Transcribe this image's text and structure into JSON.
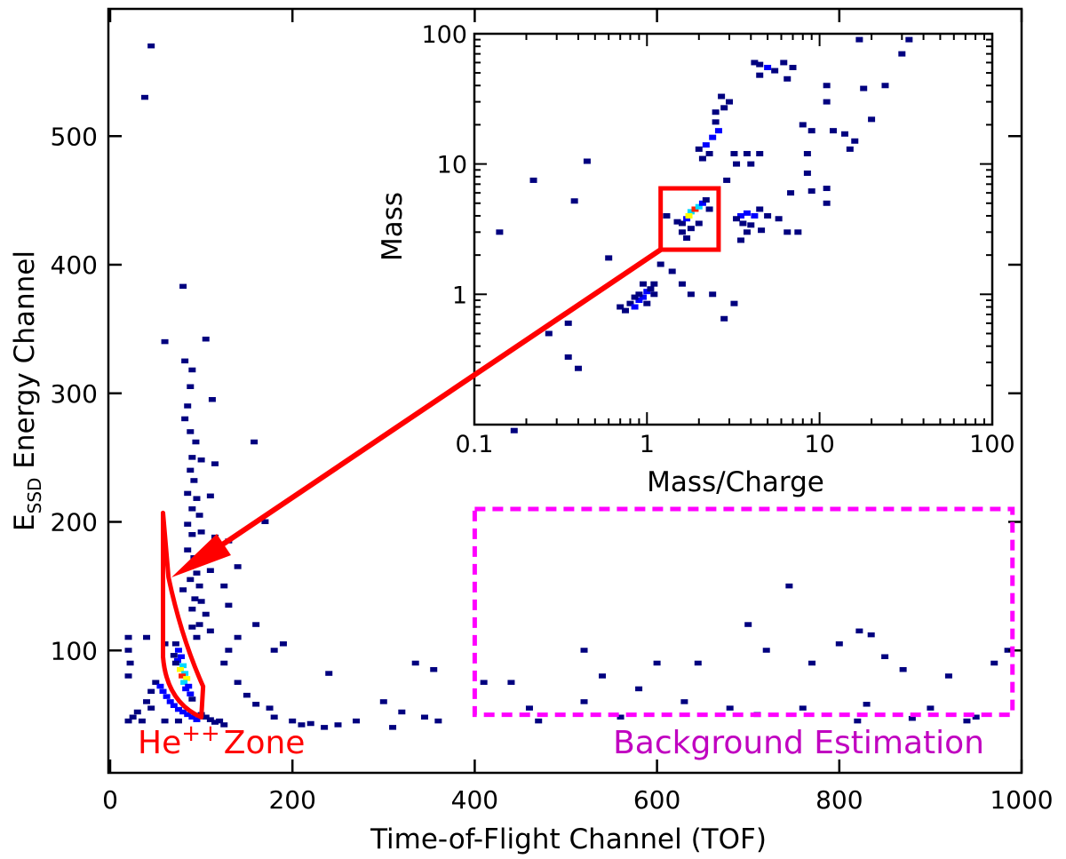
{
  "colors": {
    "zone": "#ff0000",
    "background_box": "#ff00ff",
    "background_text": "#c000c0",
    "levels": [
      "#00007f",
      "#0000ff",
      "#00d8ff",
      "#ffff00",
      "#ff2000",
      "#800000"
    ]
  },
  "chart_data": [
    {
      "type": "heatmap",
      "xlabel": "Time-of-Flight Channel (TOF)",
      "ylabel_main": "E",
      "ylabel_sub": "SSD",
      "ylabel_rest": " Energy Channel",
      "xlim": [
        0,
        1000
      ],
      "ylim": [
        5,
        600
      ],
      "xticks": [
        "0",
        "200",
        "400",
        "600",
        "800",
        "1000"
      ],
      "yticks": [
        "100",
        "200",
        "300",
        "400",
        "500"
      ],
      "grid": false,
      "annotations": {
        "zone_label_main": "He",
        "zone_label_sup": "++",
        "zone_label_rest": "Zone",
        "background_label": "Background Estimation",
        "background_box": {
          "x": [
            400,
            990
          ],
          "y": [
            50,
            210
          ]
        },
        "zone_polygon": [
          [
            58,
            207
          ],
          [
            58,
            95
          ],
          [
            100,
            48
          ],
          [
            102,
            72
          ],
          [
            64,
            157
          ]
        ]
      },
      "bins_note_format": [
        "tof",
        "energy",
        "level"
      ],
      "bins": [
        [
          45,
          570,
          1
        ],
        [
          38,
          530,
          1
        ],
        [
          80,
          383,
          1
        ],
        [
          60,
          340,
          1
        ],
        [
          105,
          342,
          1
        ],
        [
          82,
          325,
          1
        ],
        [
          90,
          318,
          1
        ],
        [
          88,
          305,
          1
        ],
        [
          85,
          290,
          1
        ],
        [
          112,
          295,
          1
        ],
        [
          82,
          280,
          1
        ],
        [
          88,
          270,
          1
        ],
        [
          94,
          262,
          1
        ],
        [
          90,
          250,
          1
        ],
        [
          100,
          248,
          1
        ],
        [
          115,
          245,
          1
        ],
        [
          88,
          240,
          1
        ],
        [
          92,
          232,
          1
        ],
        [
          85,
          222,
          1
        ],
        [
          95,
          218,
          1
        ],
        [
          110,
          220,
          1
        ],
        [
          90,
          210,
          1
        ],
        [
          98,
          205,
          1
        ],
        [
          85,
          198,
          1
        ],
        [
          90,
          190,
          1
        ],
        [
          100,
          192,
          1
        ],
        [
          115,
          188,
          1
        ],
        [
          130,
          185,
          1
        ],
        [
          85,
          178,
          1
        ],
        [
          92,
          172,
          1
        ],
        [
          105,
          175,
          1
        ],
        [
          88,
          165,
          1
        ],
        [
          95,
          160,
          1
        ],
        [
          110,
          162,
          1
        ],
        [
          88,
          155,
          1
        ],
        [
          98,
          150,
          1
        ],
        [
          80,
          147,
          1
        ],
        [
          93,
          140,
          1
        ],
        [
          100,
          138,
          1
        ],
        [
          90,
          132,
          1
        ],
        [
          105,
          128,
          1
        ],
        [
          98,
          120,
          1
        ],
        [
          90,
          118,
          1
        ],
        [
          95,
          110,
          1
        ],
        [
          110,
          115,
          1
        ],
        [
          158,
          262,
          1
        ],
        [
          170,
          200,
          1
        ],
        [
          140,
          165,
          1
        ],
        [
          130,
          135,
          1
        ],
        [
          125,
          150,
          1
        ],
        [
          72,
          105,
          1
        ],
        [
          75,
          100,
          2
        ],
        [
          78,
          95,
          2
        ],
        [
          74,
          92,
          2
        ],
        [
          80,
          88,
          3
        ],
        [
          77,
          85,
          4
        ],
        [
          82,
          82,
          3
        ],
        [
          79,
          80,
          5
        ],
        [
          84,
          78,
          4
        ],
        [
          81,
          75,
          3
        ],
        [
          86,
          72,
          2
        ],
        [
          83,
          70,
          2
        ],
        [
          88,
          66,
          2
        ],
        [
          90,
          62,
          1
        ],
        [
          72,
          90,
          1
        ],
        [
          70,
          96,
          1
        ],
        [
          50,
          75,
          1
        ],
        [
          55,
          72,
          2
        ],
        [
          58,
          68,
          2
        ],
        [
          62,
          64,
          2
        ],
        [
          66,
          60,
          2
        ],
        [
          70,
          57,
          2
        ],
        [
          75,
          54,
          2
        ],
        [
          80,
          52,
          2
        ],
        [
          85,
          50,
          2
        ],
        [
          90,
          48,
          2
        ],
        [
          95,
          46,
          2
        ],
        [
          100,
          50,
          1
        ],
        [
          105,
          48,
          1
        ],
        [
          110,
          46,
          1
        ],
        [
          115,
          44,
          1
        ],
        [
          120,
          45,
          1
        ],
        [
          125,
          42,
          1
        ],
        [
          45,
          68,
          1
        ],
        [
          40,
          60,
          1
        ],
        [
          30,
          52,
          1
        ],
        [
          25,
          48,
          1
        ],
        [
          20,
          45,
          1
        ],
        [
          35,
          45,
          1
        ],
        [
          60,
          45,
          1
        ],
        [
          75,
          45,
          1
        ],
        [
          45,
          55,
          1
        ],
        [
          20,
          110,
          1
        ],
        [
          20,
          100,
          1
        ],
        [
          22,
          90,
          1
        ],
        [
          20,
          80,
          1
        ],
        [
          40,
          110,
          1
        ],
        [
          60,
          105,
          1
        ],
        [
          140,
          75,
          1
        ],
        [
          150,
          65,
          1
        ],
        [
          160,
          58,
          1
        ],
        [
          175,
          55,
          1
        ],
        [
          180,
          48,
          1
        ],
        [
          200,
          45,
          1
        ],
        [
          210,
          42,
          1
        ],
        [
          220,
          43,
          1
        ],
        [
          235,
          40,
          1
        ],
        [
          250,
          42,
          1
        ],
        [
          270,
          45,
          1
        ],
        [
          240,
          82,
          1
        ],
        [
          300,
          60,
          1
        ],
        [
          310,
          40,
          1
        ],
        [
          320,
          52,
          1
        ],
        [
          345,
          48,
          1
        ],
        [
          360,
          45,
          1
        ],
        [
          335,
          90,
          1
        ],
        [
          355,
          85,
          1
        ],
        [
          190,
          105,
          1
        ],
        [
          160,
          120,
          1
        ],
        [
          180,
          100,
          1
        ],
        [
          130,
          100,
          1
        ],
        [
          140,
          110,
          1
        ],
        [
          125,
          90,
          1
        ],
        [
          440,
          75,
          1
        ],
        [
          460,
          55,
          1
        ],
        [
          520,
          100,
          1
        ],
        [
          540,
          80,
          1
        ],
        [
          580,
          70,
          1
        ],
        [
          600,
          90,
          1
        ],
        [
          645,
          90,
          1
        ],
        [
          700,
          120,
          1
        ],
        [
          720,
          100,
          1
        ],
        [
          745,
          150,
          1
        ],
        [
          770,
          90,
          1
        ],
        [
          800,
          105,
          1
        ],
        [
          822,
          115,
          1
        ],
        [
          835,
          112,
          1
        ],
        [
          850,
          95,
          1
        ],
        [
          870,
          85,
          1
        ],
        [
          920,
          80,
          1
        ],
        [
          970,
          90,
          1
        ],
        [
          985,
          100,
          1
        ],
        [
          410,
          75,
          1
        ],
        [
          520,
          60,
          1
        ],
        [
          630,
          60,
          1
        ],
        [
          680,
          55,
          1
        ],
        [
          760,
          55,
          1
        ],
        [
          830,
          58,
          1
        ],
        [
          900,
          55,
          1
        ],
        [
          950,
          48,
          1
        ],
        [
          470,
          45,
          1
        ],
        [
          560,
          48,
          1
        ],
        [
          710,
          50,
          1
        ],
        [
          820,
          45,
          1
        ],
        [
          880,
          47,
          1
        ],
        [
          940,
          45,
          1
        ]
      ]
    },
    {
      "type": "heatmap",
      "xlabel": "Mass/Charge",
      "ylabel": "Mass",
      "xscale": "log",
      "yscale": "log",
      "xlim": [
        0.1,
        100
      ],
      "ylim": [
        0.1,
        100
      ],
      "xticks": [
        "0.1",
        "1",
        "10",
        "100"
      ],
      "yticks": [
        "1",
        "10",
        "100"
      ],
      "grid": false,
      "annotations": {
        "highlight_box": {
          "x": [
            1.2,
            2.6
          ],
          "y": [
            2.2,
            6.5
          ]
        }
      },
      "bins": [
        [
          0.8,
          0.85,
          1
        ],
        [
          0.85,
          0.8,
          2
        ],
        [
          0.9,
          0.9,
          2
        ],
        [
          0.95,
          0.95,
          2
        ],
        [
          1.0,
          1.05,
          2
        ],
        [
          1.05,
          1.1,
          1
        ],
        [
          0.9,
          1.0,
          1
        ],
        [
          0.85,
          0.95,
          1
        ],
        [
          1.1,
          1.0,
          1
        ],
        [
          0.75,
          0.75,
          1
        ],
        [
          1.0,
          0.85,
          1
        ],
        [
          1.1,
          1.2,
          1
        ],
        [
          0.7,
          0.8,
          1
        ],
        [
          0.95,
          1.2,
          1
        ],
        [
          1.6,
          3.5,
          1
        ],
        [
          1.7,
          3.8,
          2
        ],
        [
          1.8,
          4.3,
          3
        ],
        [
          1.75,
          4.0,
          4
        ],
        [
          1.9,
          4.5,
          5
        ],
        [
          2.0,
          4.7,
          3
        ],
        [
          2.1,
          5.0,
          2
        ],
        [
          2.2,
          5.3,
          1
        ],
        [
          1.6,
          3.0,
          1
        ],
        [
          1.8,
          3.2,
          1
        ],
        [
          2.0,
          3.5,
          1
        ],
        [
          1.5,
          3.6,
          1
        ],
        [
          2.3,
          4.5,
          1
        ],
        [
          1.7,
          2.7,
          1
        ],
        [
          1.3,
          4.0,
          1
        ],
        [
          3.5,
          4.0,
          2
        ],
        [
          3.8,
          4.2,
          2
        ],
        [
          4.2,
          4.0,
          2
        ],
        [
          3.6,
          3.5,
          1
        ],
        [
          4.5,
          4.5,
          1
        ],
        [
          3.3,
          3.8,
          1
        ],
        [
          4.0,
          3.4,
          1
        ],
        [
          5.0,
          4.0,
          1
        ],
        [
          5.8,
          3.8,
          1
        ],
        [
          3.8,
          3.0,
          1
        ],
        [
          4.6,
          3.1,
          1
        ],
        [
          3.5,
          2.6,
          1
        ],
        [
          6.5,
          3.0,
          1
        ],
        [
          7.5,
          3.0,
          1
        ],
        [
          2.2,
          14,
          2
        ],
        [
          2.4,
          16,
          2
        ],
        [
          2.6,
          18,
          2
        ],
        [
          2.3,
          12,
          1
        ],
        [
          2.1,
          11,
          1
        ],
        [
          2.0,
          13,
          1
        ],
        [
          2.5,
          21,
          1
        ],
        [
          2.5,
          25,
          1
        ],
        [
          2.8,
          27,
          1
        ],
        [
          3.0,
          30,
          1
        ],
        [
          2.7,
          33,
          1
        ],
        [
          3.2,
          12,
          1
        ],
        [
          3.8,
          12,
          1
        ],
        [
          4.5,
          12,
          1
        ],
        [
          3.3,
          10,
          1
        ],
        [
          4.0,
          10,
          1
        ],
        [
          2.9,
          7.5,
          1
        ],
        [
          5.0,
          55,
          2
        ],
        [
          4.5,
          58,
          1
        ],
        [
          5.5,
          52,
          1
        ],
        [
          4.2,
          60,
          1
        ],
        [
          6.2,
          60,
          1
        ],
        [
          7,
          55,
          1
        ],
        [
          4.5,
          48,
          1
        ],
        [
          6.5,
          45,
          1
        ],
        [
          0.17,
          0.09,
          1
        ],
        [
          0.14,
          3.0,
          1
        ],
        [
          0.22,
          7.5,
          1
        ],
        [
          0.27,
          0.5,
          1
        ],
        [
          0.35,
          0.33,
          1
        ],
        [
          0.45,
          10.5,
          1
        ],
        [
          0.38,
          5.2,
          1
        ],
        [
          0.35,
          0.6,
          1
        ],
        [
          0.4,
          0.27,
          1
        ],
        [
          0.6,
          1.9,
          1
        ],
        [
          1.2,
          1.7,
          1
        ],
        [
          1.4,
          1.5,
          1
        ],
        [
          1.6,
          1.2,
          1
        ],
        [
          1.8,
          1.0,
          1
        ],
        [
          2.4,
          1.0,
          1
        ],
        [
          3.2,
          0.85,
          1
        ],
        [
          2.8,
          0.65,
          1
        ],
        [
          8,
          20,
          1
        ],
        [
          8.5,
          12,
          1
        ],
        [
          11,
          40,
          1
        ],
        [
          11,
          30,
          1
        ],
        [
          12,
          18,
          1
        ],
        [
          14,
          17,
          1
        ],
        [
          20,
          22,
          1
        ],
        [
          18,
          38,
          1
        ],
        [
          24,
          40,
          1
        ],
        [
          30,
          70,
          1
        ],
        [
          33,
          90,
          1
        ],
        [
          17,
          90,
          1
        ],
        [
          9,
          6.2,
          1
        ],
        [
          11,
          5.0,
          1
        ],
        [
          6.8,
          6.0,
          1
        ],
        [
          8.5,
          8.5,
          1
        ],
        [
          9,
          18,
          1
        ],
        [
          11,
          6.5,
          1
        ],
        [
          16,
          15,
          1
        ],
        [
          15,
          13,
          1
        ]
      ]
    }
  ]
}
